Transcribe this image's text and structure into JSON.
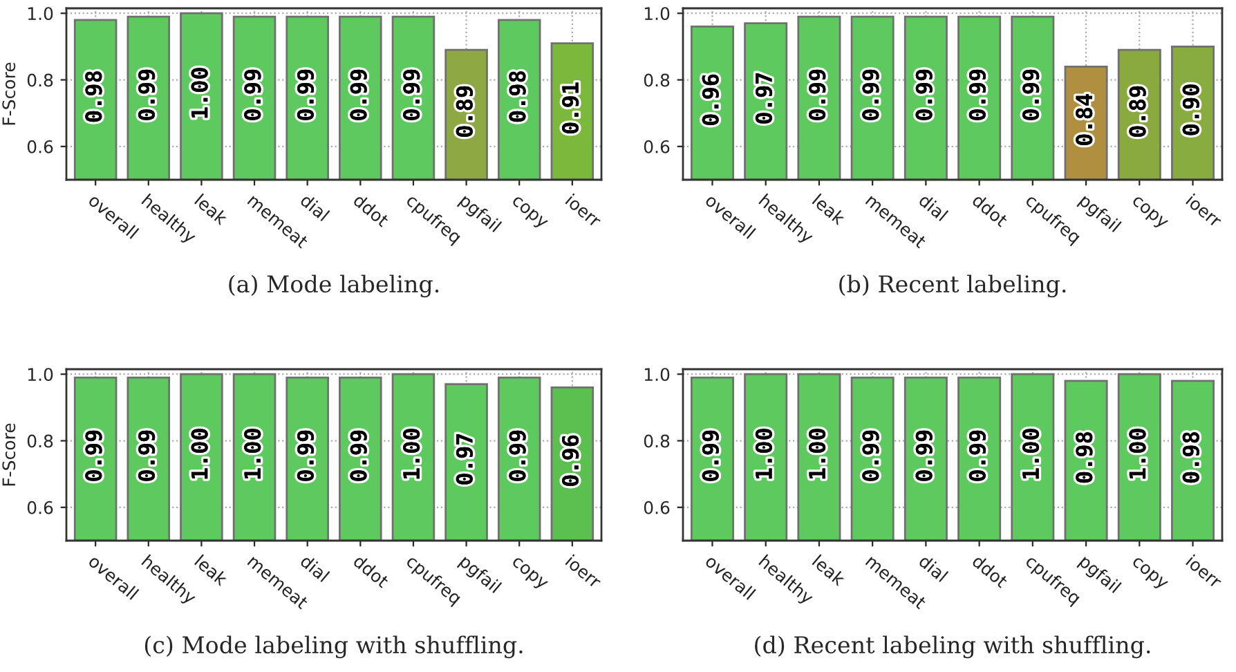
{
  "chart_data": [
    {
      "type": "bar",
      "ylabel": "F-Score",
      "annotations": [
        "(a) Mode labeling."
      ],
      "categories": [
        "overall",
        "healthy",
        "leak",
        "memeat",
        "dial",
        "ddot",
        "cpufreq",
        "pgfail",
        "copy",
        "ioerr"
      ],
      "values": [
        0.98,
        0.99,
        1.0,
        0.99,
        0.99,
        0.99,
        0.99,
        0.89,
        0.98,
        0.91
      ],
      "colors": [
        "#5ec95e",
        "#5ec95e",
        "#5ec95e",
        "#5ec95e",
        "#5ec95e",
        "#5ec95e",
        "#5ec95e",
        "#8ea844",
        "#5ec95e",
        "#7bb83c"
      ],
      "ylim": [
        0.5,
        1.015
      ],
      "yticks": [
        {
          "value": 0.6,
          "label": "0.6"
        },
        {
          "value": 0.8,
          "label": "0.8"
        },
        {
          "value": 1.0,
          "label": "1.0"
        }
      ],
      "grid": true,
      "value_labels": [
        "0.98",
        "0.99",
        "1.00",
        "0.99",
        "0.99",
        "0.99",
        "0.99",
        "0.89",
        "0.98",
        "0.91"
      ]
    },
    {
      "type": "bar",
      "annotations": [
        "(b) Recent labeling."
      ],
      "categories": [
        "overall",
        "healthy",
        "leak",
        "memeat",
        "dial",
        "ddot",
        "cpufreq",
        "pgfail",
        "copy",
        "ioerr"
      ],
      "values": [
        0.96,
        0.97,
        0.99,
        0.99,
        0.99,
        0.99,
        0.99,
        0.84,
        0.89,
        0.9
      ],
      "colors": [
        "#5ec95e",
        "#5ec95e",
        "#5ec95e",
        "#5ec95e",
        "#5ec95e",
        "#5ec95e",
        "#5ec95e",
        "#b09040",
        "#8aaa40",
        "#88ac40"
      ],
      "ylim": [
        0.5,
        1.015
      ],
      "yticks": [
        {
          "value": 0.6,
          "label": "0.6"
        },
        {
          "value": 0.8,
          "label": "0.8"
        },
        {
          "value": 1.0,
          "label": "1.0"
        }
      ],
      "grid": true,
      "value_labels": [
        "0.96",
        "0.97",
        "0.99",
        "0.99",
        "0.99",
        "0.99",
        "0.99",
        "0.84",
        "0.89",
        "0.90"
      ]
    },
    {
      "type": "bar",
      "ylabel": "F-Score",
      "annotations": [
        "(c) Mode labeling with shuffling."
      ],
      "categories": [
        "overall",
        "healthy",
        "leak",
        "memeat",
        "dial",
        "ddot",
        "cpufreq",
        "pgfail",
        "copy",
        "ioerr"
      ],
      "values": [
        0.99,
        0.99,
        1.0,
        1.0,
        0.99,
        0.99,
        1.0,
        0.97,
        0.99,
        0.96
      ],
      "colors": [
        "#5ec95e",
        "#5ec95e",
        "#5ec95e",
        "#5ec95e",
        "#5ec95e",
        "#5ec95e",
        "#5ec95e",
        "#5ec95e",
        "#5ec95e",
        "#5cc050"
      ],
      "ylim": [
        0.5,
        1.015
      ],
      "yticks": [
        {
          "value": 0.6,
          "label": "0.6"
        },
        {
          "value": 0.8,
          "label": "0.8"
        },
        {
          "value": 1.0,
          "label": "1.0"
        }
      ],
      "grid": true,
      "value_labels": [
        "0.99",
        "0.99",
        "1.00",
        "1.00",
        "0.99",
        "0.99",
        "1.00",
        "0.97",
        "0.99",
        "0.96"
      ]
    },
    {
      "type": "bar",
      "annotations": [
        "(d) Recent labeling with shuffling."
      ],
      "categories": [
        "overall",
        "healthy",
        "leak",
        "memeat",
        "dial",
        "ddot",
        "cpufreq",
        "pgfail",
        "copy",
        "ioerr"
      ],
      "values": [
        0.99,
        1.0,
        1.0,
        0.99,
        0.99,
        0.99,
        1.0,
        0.98,
        1.0,
        0.98
      ],
      "colors": [
        "#5ec95e",
        "#5ec95e",
        "#5ec95e",
        "#5ec95e",
        "#5ec95e",
        "#5ec95e",
        "#5ec95e",
        "#5ec95e",
        "#5ec95e",
        "#5ec95e"
      ],
      "ylim": [
        0.5,
        1.015
      ],
      "yticks": [
        {
          "value": 0.6,
          "label": "0.6"
        },
        {
          "value": 0.8,
          "label": "0.8"
        },
        {
          "value": 1.0,
          "label": "1.0"
        }
      ],
      "grid": true,
      "value_labels": [
        "0.99",
        "1.00",
        "1.00",
        "0.99",
        "0.99",
        "0.99",
        "1.00",
        "0.98",
        "1.00",
        "0.98"
      ]
    }
  ]
}
